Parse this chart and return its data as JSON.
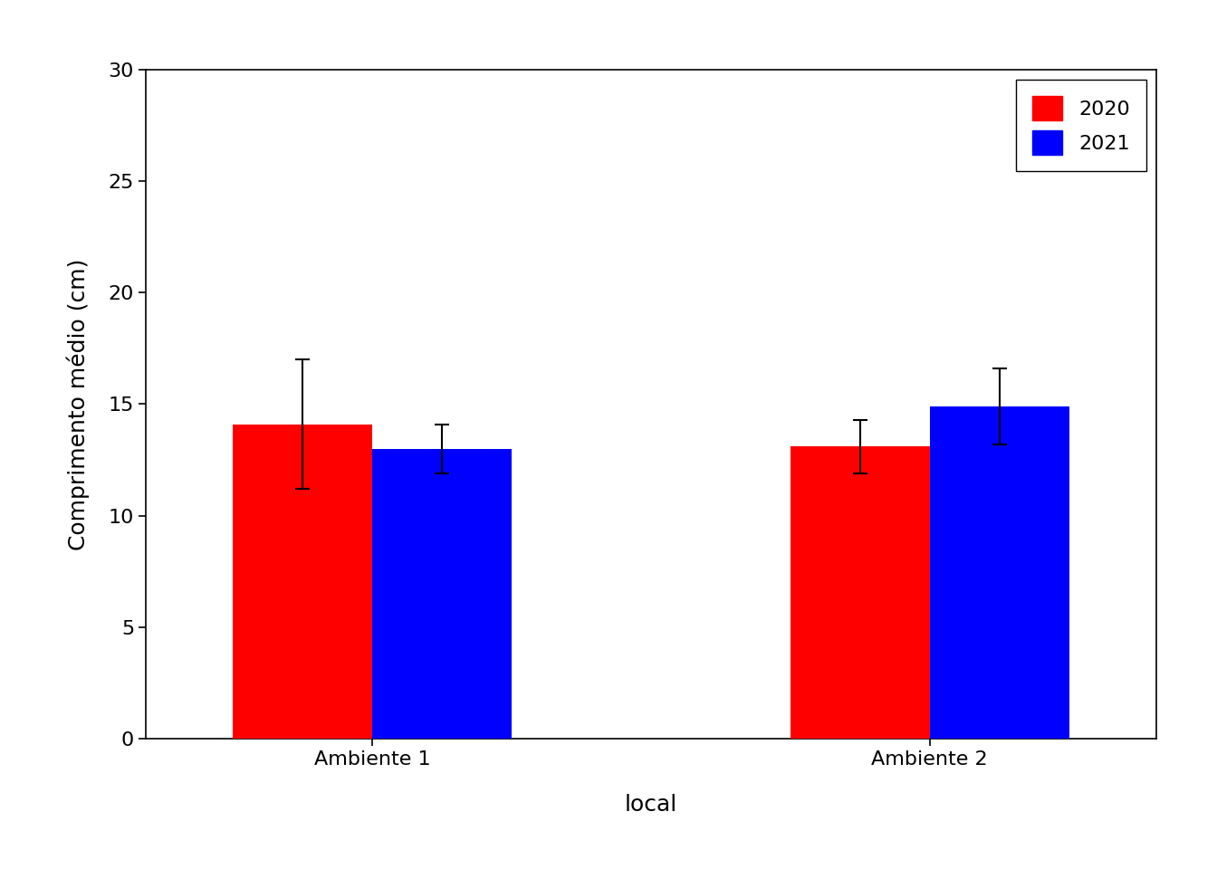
{
  "groups": [
    "Ambiente 1",
    "Ambiente 2"
  ],
  "years": [
    "2020",
    "2021"
  ],
  "means": {
    "Ambiente 1": {
      "2020": 14.1,
      "2021": 13.0
    },
    "Ambiente 2": {
      "2020": 13.1,
      "2021": 14.9
    }
  },
  "errors": {
    "Ambiente 1": {
      "2020": 2.9,
      "2021": 1.1
    },
    "Ambiente 2": {
      "2020": 1.2,
      "2021": 1.7
    }
  },
  "bar_colors": {
    "2020": "#FF0000",
    "2021": "#0000FF"
  },
  "xlabel": "local",
  "ylabel": "Comprimento médio (cm)",
  "ylim": [
    0,
    30
  ],
  "yticks": [
    0,
    5,
    10,
    15,
    20,
    25,
    30
  ],
  "background_color": "#FFFFFF",
  "plot_bg_color": "#FFFFFF",
  "axis_fontsize": 18,
  "tick_fontsize": 16,
  "legend_fontsize": 16,
  "bar_width": 0.4,
  "group_centers": [
    1.0,
    2.6
  ],
  "xlim": [
    0.35,
    3.25
  ]
}
